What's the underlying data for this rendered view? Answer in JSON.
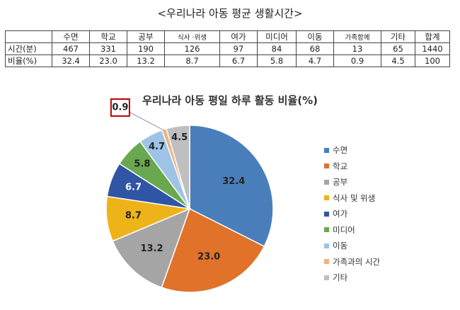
{
  "table": {
    "title": "<우리나라 아동 평균 생활시간>",
    "headers": [
      "",
      "수면",
      "학교",
      "공부",
      "식사 ·위생",
      "여가",
      "미디어",
      "이동",
      "가족함께",
      "기타",
      "합계"
    ],
    "rows": [
      [
        "시간(분)",
        "467",
        "331",
        "190",
        "126",
        "97",
        "84",
        "68",
        "13",
        "65",
        "1440"
      ],
      [
        "비율(%)",
        "32.4",
        "23.0",
        "13.2",
        "8.7",
        "6.7",
        "5.8",
        "4.7",
        "0.9",
        "4.5",
        "100"
      ]
    ]
  },
  "chart_data": {
    "type": "pie",
    "title": "우리나라 아동 평일 하루 활동 비율(%)",
    "categories": [
      "수면",
      "학교",
      "공부",
      "식사 및 위생",
      "여가",
      "미디어",
      "이동",
      "가족과의 시간",
      "기타"
    ],
    "values": [
      32.4,
      23.0,
      13.2,
      8.7,
      6.7,
      5.8,
      4.7,
      0.9,
      4.5
    ],
    "labels": [
      "32.4",
      "23.0",
      "13.2",
      "8.7",
      "6.7",
      "5.8",
      "4.7",
      "0.9",
      "4.5"
    ],
    "colors": [
      "#4a7ebb",
      "#e0722a",
      "#a5a5a5",
      "#efb31a",
      "#2f55a4",
      "#6aa84f",
      "#9dc3e6",
      "#f4b183",
      "#bfbfbf"
    ],
    "label_colors": [
      "#222222",
      "#222222",
      "#222222",
      "#222222",
      "#ffffff",
      "#222222",
      "#222222",
      "#222222",
      "#222222"
    ],
    "highlighted_label": "0.9",
    "highlight_color": "#c00000",
    "legend_position": "right",
    "start_angle": "top",
    "direction": "clockwise"
  }
}
